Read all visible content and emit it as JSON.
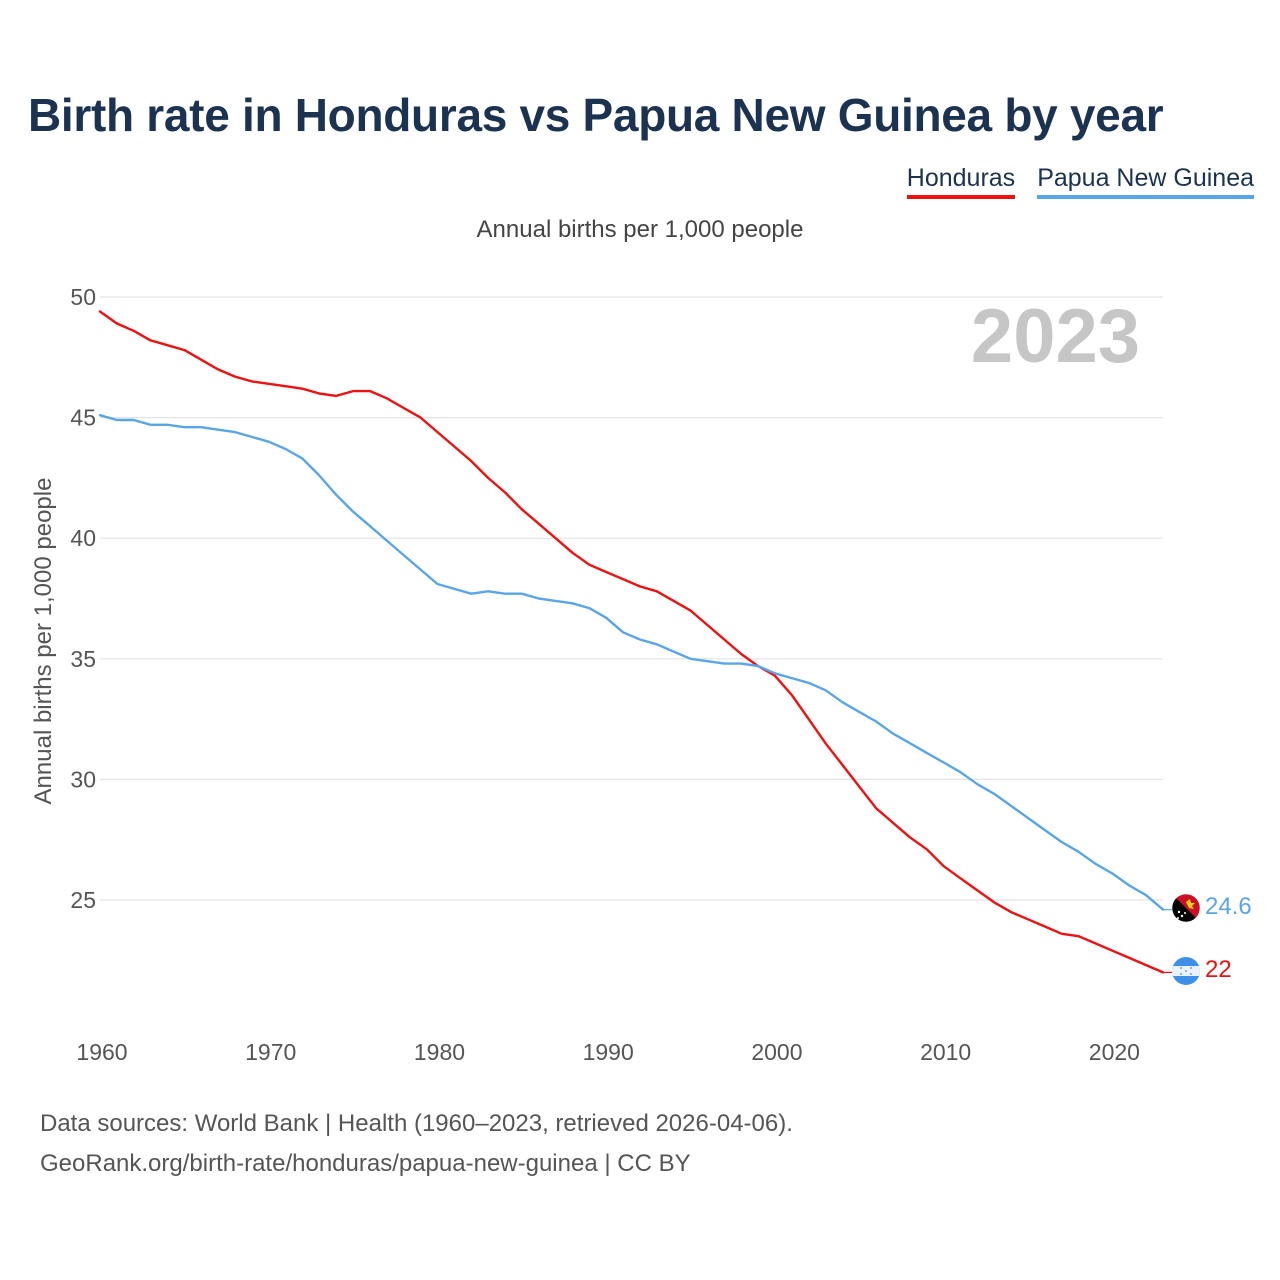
{
  "title": "Birth rate in Honduras vs Papua New Guinea by year",
  "subtitle": "Annual births per 1,000 people",
  "legend": [
    {
      "label": "Honduras",
      "color": "#ee1111"
    },
    {
      "label": "Papua New Guinea",
      "color": "#5aa5e8"
    }
  ],
  "year_label": "2023",
  "footer": {
    "line1": "Data sources: World Bank | Health (1960–2023, retrieved 2026-04-06).",
    "line2": "GeoRank.org/birth-rate/honduras/papua-new-guinea | CC BY"
  },
  "chart_data": {
    "type": "line",
    "title": "Birth rate in Honduras vs Papua New Guinea by year",
    "ylabel": "Annual births per 1,000 people",
    "xlabel": "",
    "xlim": [
      1960,
      2023
    ],
    "ylim": [
      20.5,
      50
    ],
    "yticks": [
      25,
      30,
      35,
      40,
      45,
      50
    ],
    "xticks": [
      1960,
      1970,
      1980,
      1990,
      2000,
      2010,
      2020
    ],
    "grid": true,
    "x": [
      1960,
      1961,
      1962,
      1963,
      1964,
      1965,
      1966,
      1967,
      1968,
      1969,
      1970,
      1971,
      1972,
      1973,
      1974,
      1975,
      1976,
      1977,
      1978,
      1979,
      1980,
      1981,
      1982,
      1983,
      1984,
      1985,
      1986,
      1987,
      1988,
      1989,
      1990,
      1991,
      1992,
      1993,
      1994,
      1995,
      1996,
      1997,
      1998,
      1999,
      2000,
      2001,
      2002,
      2003,
      2004,
      2005,
      2006,
      2007,
      2008,
      2009,
      2010,
      2011,
      2012,
      2013,
      2014,
      2015,
      2016,
      2017,
      2018,
      2019,
      2020,
      2021,
      2022,
      2023
    ],
    "series": [
      {
        "name": "Honduras",
        "color": "#ee1111",
        "end_label": "22",
        "values": [
          49.4,
          48.9,
          48.6,
          48.2,
          48.0,
          47.8,
          47.4,
          47.0,
          46.7,
          46.5,
          46.4,
          46.3,
          46.2,
          46.0,
          45.9,
          46.1,
          46.1,
          45.8,
          45.4,
          45.0,
          44.4,
          43.8,
          43.2,
          42.5,
          41.9,
          41.2,
          40.6,
          40.0,
          39.4,
          38.9,
          38.6,
          38.3,
          38.0,
          37.8,
          37.4,
          37.0,
          36.4,
          35.8,
          35.2,
          34.7,
          34.3,
          33.5,
          32.5,
          31.5,
          30.6,
          29.7,
          28.8,
          28.2,
          27.6,
          27.1,
          26.4,
          25.9,
          25.4,
          24.9,
          24.5,
          24.2,
          23.9,
          23.6,
          23.5,
          23.2,
          22.9,
          22.6,
          22.3,
          22.0
        ]
      },
      {
        "name": "Papua New Guinea",
        "color": "#5aa5e8",
        "end_label": "24.6",
        "values": [
          45.1,
          44.9,
          44.9,
          44.7,
          44.7,
          44.6,
          44.6,
          44.5,
          44.4,
          44.2,
          44.0,
          43.7,
          43.3,
          42.6,
          41.8,
          41.1,
          40.5,
          39.9,
          39.3,
          38.7,
          38.1,
          37.9,
          37.7,
          37.8,
          37.7,
          37.7,
          37.5,
          37.4,
          37.3,
          37.1,
          36.7,
          36.1,
          35.8,
          35.6,
          35.3,
          35.0,
          34.9,
          34.8,
          34.8,
          34.7,
          34.4,
          34.2,
          34.0,
          33.7,
          33.2,
          32.8,
          32.4,
          31.9,
          31.5,
          31.1,
          30.7,
          30.3,
          29.8,
          29.4,
          28.9,
          28.4,
          27.9,
          27.4,
          27.0,
          26.5,
          26.1,
          25.6,
          25.2,
          24.6
        ]
      }
    ]
  }
}
